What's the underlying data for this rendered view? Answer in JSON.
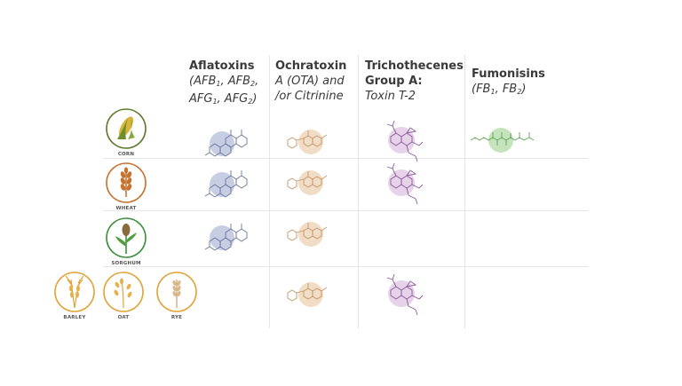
{
  "columns": [
    {
      "title": "Aflatoxins",
      "line1": [
        "(AFB",
        "1",
        ", AFB",
        "2",
        ","
      ],
      "line2": [
        "AFG",
        "1",
        ", AFG",
        "2",
        ")"
      ]
    },
    {
      "title": "Ochratoxin",
      "line1": "A (OTA) and",
      "line2": "/or Citrinine"
    },
    {
      "title1": "Trichothecenes",
      "title2": "Group A:",
      "line1": "Toxin T-2"
    },
    {
      "title": "Fumonisins",
      "line1": [
        "(FB",
        "1",
        ", FB",
        "2",
        ")"
      ]
    }
  ],
  "crops": {
    "corn": "CORN",
    "wheat": "WHEAT",
    "sorghum": "SORGHUM",
    "barley": "BARLEY",
    "oat": "OAT",
    "rye": "RYE"
  },
  "colors": {
    "aflatoxin": "#c7cde3",
    "ochratoxin": "#f1dcc6",
    "trichothecene": "#e6d3ea",
    "fumonisin": "#c5e3bd",
    "corn_ring": "#5e7a2c",
    "wheat_ring": "#c8732c",
    "sorghum_ring": "#3f8f3a",
    "cereal_ring": "#e1a43a"
  }
}
